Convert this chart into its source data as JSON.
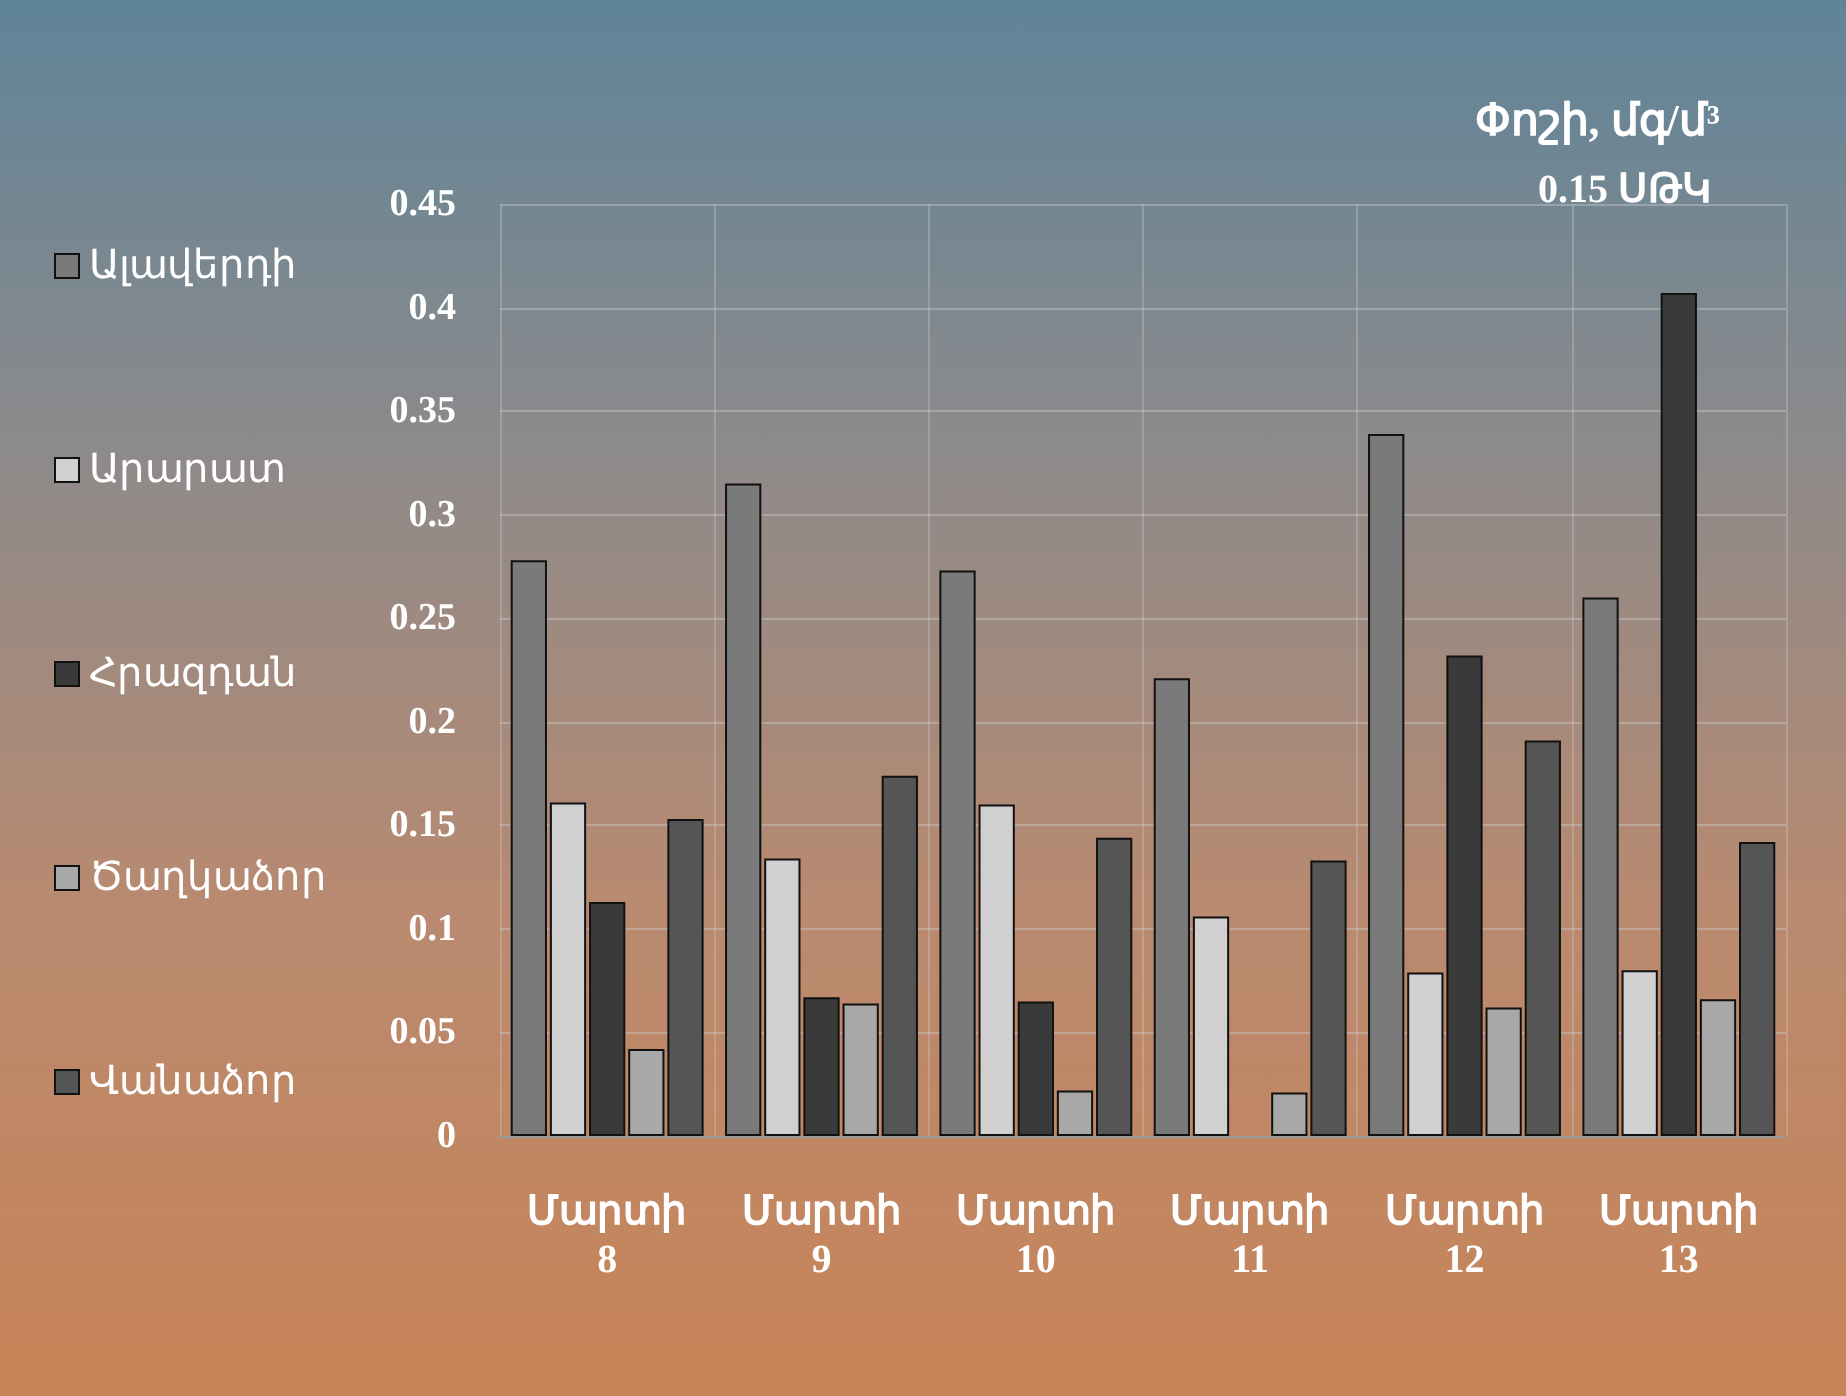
{
  "chart_data": {
    "type": "bar",
    "title": "Փոշի, մգ/մ³",
    "subtitle": "0.15 ՍԹԿ",
    "categories": [
      "Մարտի 8",
      "Մարտի 9",
      "Մարտի 10",
      "Մարտի 11",
      "Մարտի 12",
      "Մարտի 13"
    ],
    "series": [
      {
        "name": "Ալավերդի",
        "color": "#7a7a7a",
        "values": [
          0.278,
          0.315,
          0.273,
          0.221,
          0.339,
          0.26
        ]
      },
      {
        "name": "Արարատ",
        "color": "#d0d0d0",
        "values": [
          0.161,
          0.134,
          0.16,
          0.106,
          0.079,
          0.08
        ]
      },
      {
        "name": "Հրազդան",
        "color": "#3a3a3a",
        "values": [
          0.113,
          0.067,
          0.065,
          null,
          0.232,
          0.407
        ]
      },
      {
        "name": "Ծաղկաձոր",
        "color": "#a8a8a8",
        "values": [
          0.042,
          0.064,
          0.022,
          0.021,
          0.062,
          0.066
        ]
      },
      {
        "name": "Վանաձոր",
        "color": "#555555",
        "values": [
          0.153,
          0.174,
          0.144,
          0.133,
          0.191,
          0.142
        ]
      }
    ],
    "ylim": [
      0,
      0.45
    ],
    "yticks": [
      0,
      0.05,
      0.1,
      0.15,
      0.2,
      0.25,
      0.3,
      0.35,
      0.4,
      0.45
    ],
    "grid": true,
    "legend": "left"
  }
}
